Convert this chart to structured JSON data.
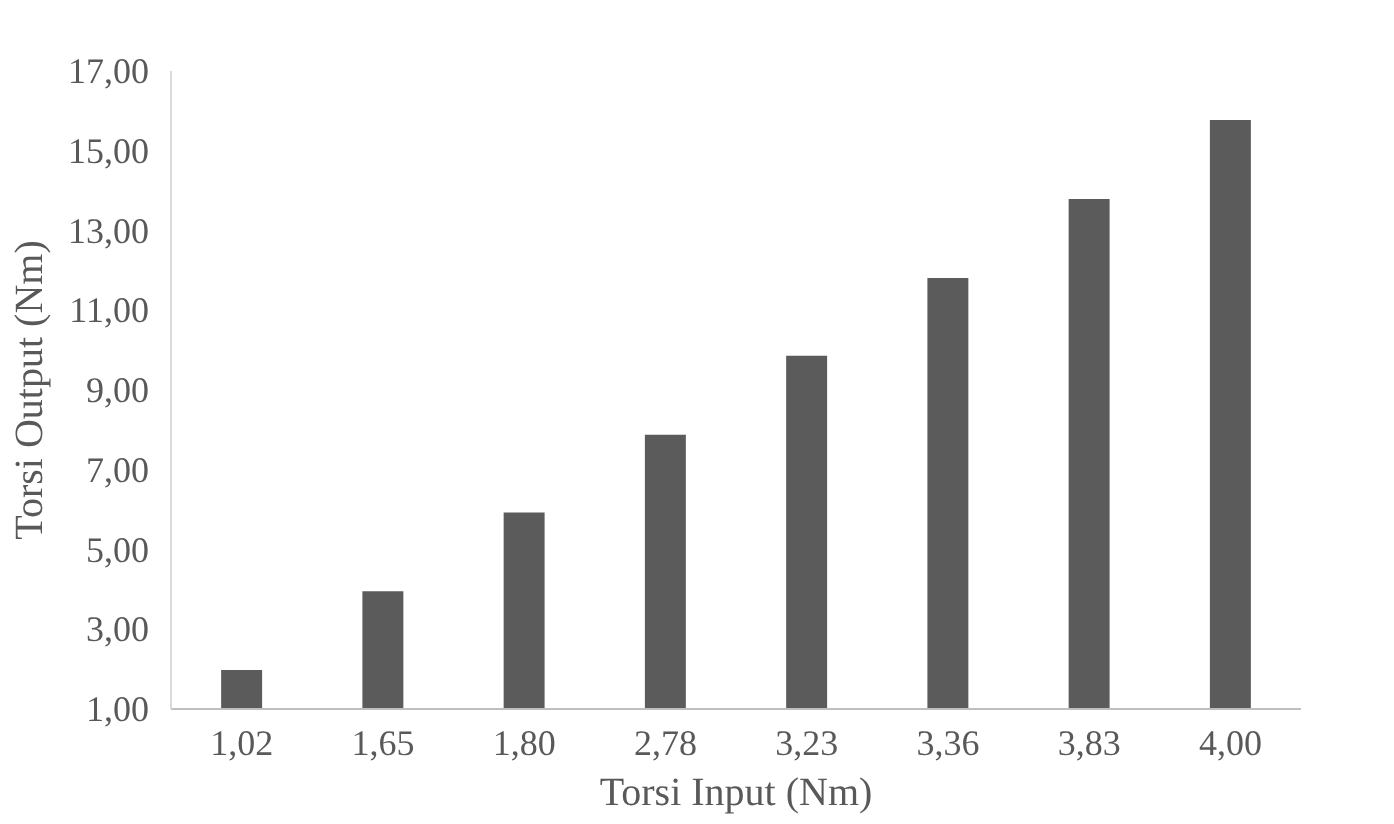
{
  "chart_data": {
    "type": "bar",
    "xlabel": "Torsi Input (Nm)",
    "ylabel": "Torsi Output (Nm)",
    "categories": [
      "1,02",
      "1,65",
      "1,80",
      "2,78",
      "3,23",
      "3,36",
      "3,83",
      "4,00"
    ],
    "values": [
      1.98,
      3.95,
      5.93,
      7.88,
      9.86,
      11.81,
      13.79,
      15.77
    ],
    "color": "#5b5b5b",
    "ylim": [
      1,
      17
    ],
    "yticks": [
      {
        "value": 1,
        "label": "1,00"
      },
      {
        "value": 3,
        "label": "3,00"
      },
      {
        "value": 5,
        "label": "5,00"
      },
      {
        "value": 7,
        "label": "7,00"
      },
      {
        "value": 9,
        "label": "9,00"
      },
      {
        "value": 11,
        "label": "11,00"
      },
      {
        "value": 13,
        "label": "13,00"
      },
      {
        "value": 15,
        "label": "15,00"
      },
      {
        "value": 17,
        "label": "17,00"
      }
    ],
    "grid": false
  }
}
